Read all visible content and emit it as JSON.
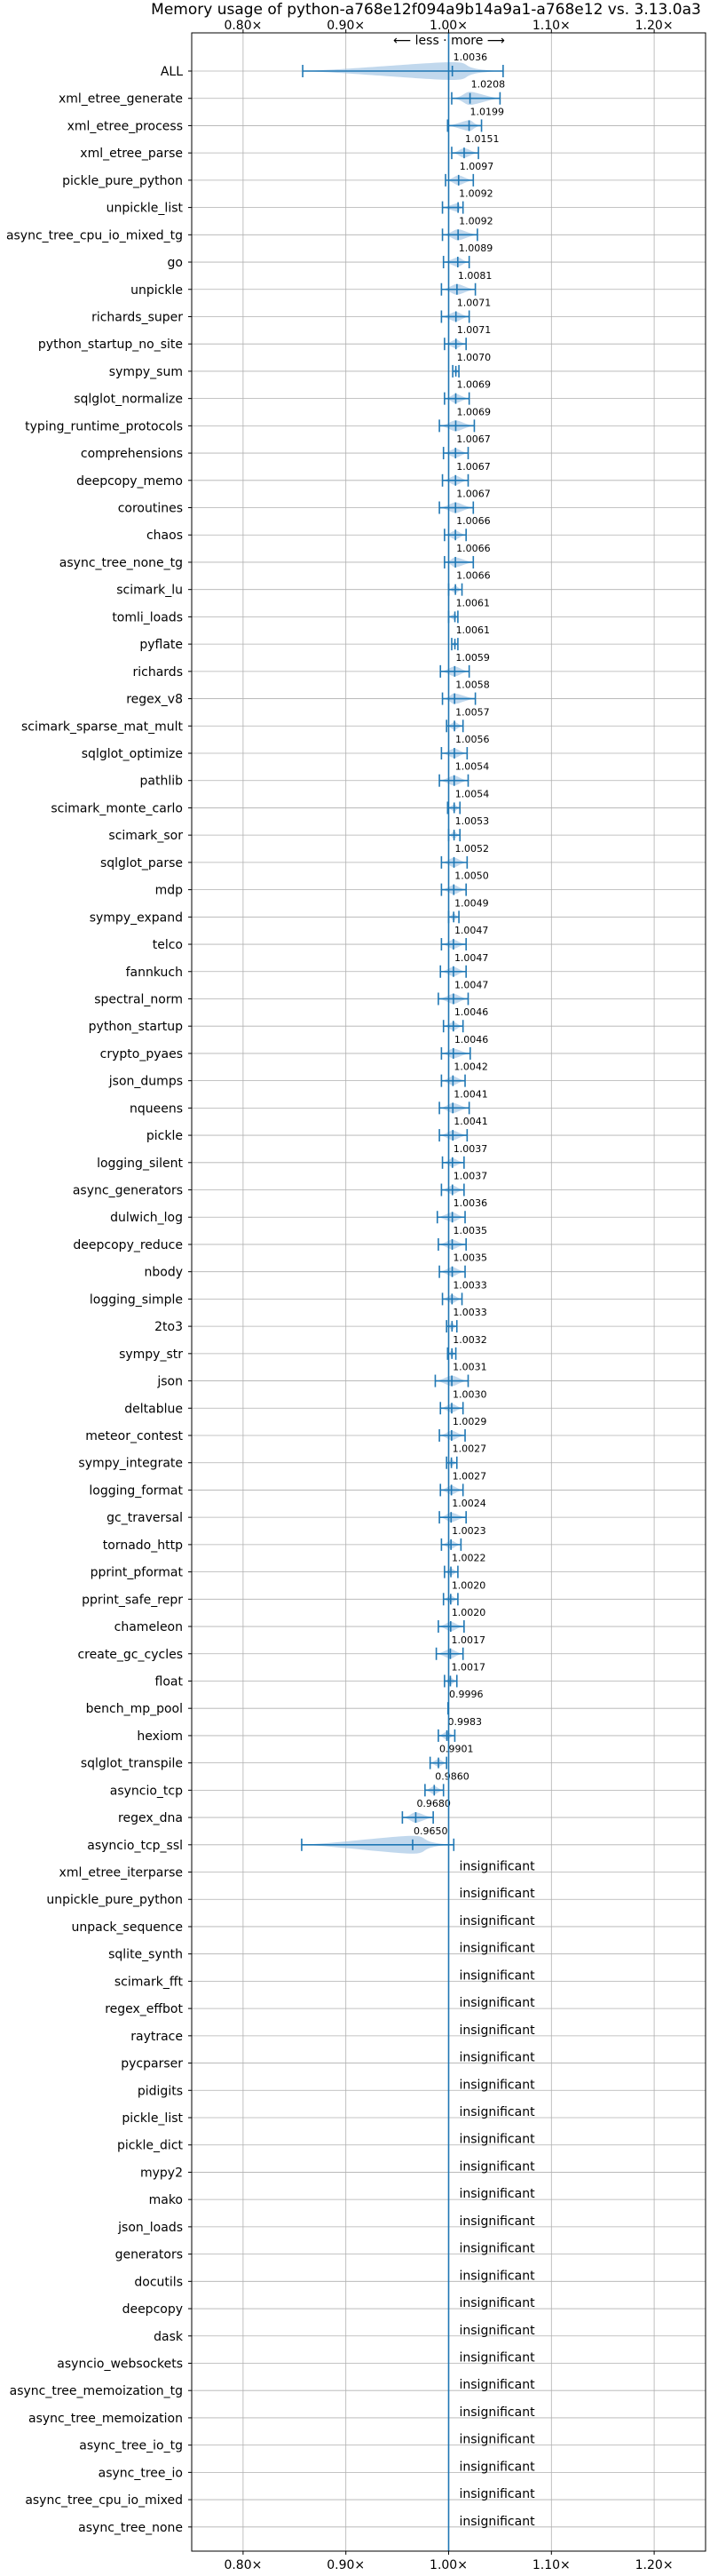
{
  "chart_data": {
    "type": "scatter",
    "title": "Memory usage of python-a768e12f094a9b14a9a1-a768e12 vs. 3.13.0a3",
    "direction_label": "⟵ less · more ⟶",
    "xlabel": "",
    "ylabel": "",
    "xlim": [
      0.75,
      1.25
    ],
    "x_ticks": [
      0.8,
      0.9,
      1.0,
      1.1,
      1.2
    ],
    "x_tick_labels": [
      "0.80×",
      "0.90×",
      "1.00×",
      "1.10×",
      "1.20×"
    ],
    "reference_line": 1.0,
    "grid": true,
    "insignificant_label": "insignificant",
    "colors": {
      "line": "#1f77b4",
      "fill": "#a6c8e6",
      "grid": "#b0b0b0"
    },
    "benchmarks": [
      {
        "name": "ALL",
        "value": 1.0036,
        "label": "1.0036",
        "lo": 0.858,
        "hi": 1.053
      },
      {
        "name": "xml_etree_generate",
        "value": 1.0208,
        "label": "1.0208",
        "lo": 1.003,
        "hi": 1.05
      },
      {
        "name": "xml_etree_process",
        "value": 1.0199,
        "label": "1.0199",
        "lo": 0.999,
        "hi": 1.032
      },
      {
        "name": "xml_etree_parse",
        "value": 1.0151,
        "label": "1.0151",
        "lo": 1.003,
        "hi": 1.029
      },
      {
        "name": "pickle_pure_python",
        "value": 1.0097,
        "label": "1.0097",
        "lo": 0.997,
        "hi": 1.024
      },
      {
        "name": "unpickle_list",
        "value": 1.0092,
        "label": "1.0092",
        "lo": 0.994,
        "hi": 1.014
      },
      {
        "name": "async_tree_cpu_io_mixed_tg",
        "value": 1.0092,
        "label": "1.0092",
        "lo": 0.994,
        "hi": 1.028
      },
      {
        "name": "go",
        "value": 1.0089,
        "label": "1.0089",
        "lo": 0.995,
        "hi": 1.02
      },
      {
        "name": "unpickle",
        "value": 1.0081,
        "label": "1.0081",
        "lo": 0.993,
        "hi": 1.026
      },
      {
        "name": "richards_super",
        "value": 1.0071,
        "label": "1.0071",
        "lo": 0.993,
        "hi": 1.02
      },
      {
        "name": "python_startup_no_site",
        "value": 1.0071,
        "label": "1.0071",
        "lo": 0.996,
        "hi": 1.017
      },
      {
        "name": "sympy_sum",
        "value": 1.007,
        "label": "1.0070",
        "lo": 1.004,
        "hi": 1.01
      },
      {
        "name": "sqlglot_normalize",
        "value": 1.0069,
        "label": "1.0069",
        "lo": 0.996,
        "hi": 1.02
      },
      {
        "name": "typing_runtime_protocols",
        "value": 1.0069,
        "label": "1.0069",
        "lo": 0.991,
        "hi": 1.025
      },
      {
        "name": "comprehensions",
        "value": 1.0067,
        "label": "1.0067",
        "lo": 0.995,
        "hi": 1.019
      },
      {
        "name": "deepcopy_memo",
        "value": 1.0067,
        "label": "1.0067",
        "lo": 0.994,
        "hi": 1.019
      },
      {
        "name": "coroutines",
        "value": 1.0067,
        "label": "1.0067",
        "lo": 0.991,
        "hi": 1.024
      },
      {
        "name": "chaos",
        "value": 1.0066,
        "label": "1.0066",
        "lo": 0.996,
        "hi": 1.017
      },
      {
        "name": "async_tree_none_tg",
        "value": 1.0066,
        "label": "1.0066",
        "lo": 0.996,
        "hi": 1.024
      },
      {
        "name": "scimark_lu",
        "value": 1.0066,
        "label": "1.0066",
        "lo": 1.0,
        "hi": 1.013
      },
      {
        "name": "tomli_loads",
        "value": 1.0061,
        "label": "1.0061",
        "lo": 1.0,
        "hi": 1.009
      },
      {
        "name": "pyflate",
        "value": 1.0061,
        "label": "1.0061",
        "lo": 1.003,
        "hi": 1.009
      },
      {
        "name": "richards",
        "value": 1.0059,
        "label": "1.0059",
        "lo": 0.992,
        "hi": 1.02
      },
      {
        "name": "regex_v8",
        "value": 1.0058,
        "label": "1.0058",
        "lo": 0.994,
        "hi": 1.026
      },
      {
        "name": "scimark_sparse_mat_mult",
        "value": 1.0057,
        "label": "1.0057",
        "lo": 0.998,
        "hi": 1.014
      },
      {
        "name": "sqlglot_optimize",
        "value": 1.0056,
        "label": "1.0056",
        "lo": 0.993,
        "hi": 1.018
      },
      {
        "name": "pathlib",
        "value": 1.0054,
        "label": "1.0054",
        "lo": 0.991,
        "hi": 1.019
      },
      {
        "name": "scimark_monte_carlo",
        "value": 1.0054,
        "label": "1.0054",
        "lo": 0.999,
        "hi": 1.011
      },
      {
        "name": "scimark_sor",
        "value": 1.0053,
        "label": "1.0053",
        "lo": 1.0,
        "hi": 1.011
      },
      {
        "name": "sqlglot_parse",
        "value": 1.0052,
        "label": "1.0052",
        "lo": 0.993,
        "hi": 1.018
      },
      {
        "name": "mdp",
        "value": 1.005,
        "label": "1.0050",
        "lo": 0.993,
        "hi": 1.017
      },
      {
        "name": "sympy_expand",
        "value": 1.0049,
        "label": "1.0049",
        "lo": 1.0,
        "hi": 1.01
      },
      {
        "name": "telco",
        "value": 1.0047,
        "label": "1.0047",
        "lo": 0.993,
        "hi": 1.017
      },
      {
        "name": "fannkuch",
        "value": 1.0047,
        "label": "1.0047",
        "lo": 0.992,
        "hi": 1.017
      },
      {
        "name": "spectral_norm",
        "value": 1.0047,
        "label": "1.0047",
        "lo": 0.99,
        "hi": 1.019
      },
      {
        "name": "python_startup",
        "value": 1.0046,
        "label": "1.0046",
        "lo": 0.995,
        "hi": 1.014
      },
      {
        "name": "crypto_pyaes",
        "value": 1.0046,
        "label": "1.0046",
        "lo": 0.993,
        "hi": 1.021
      },
      {
        "name": "json_dumps",
        "value": 1.0042,
        "label": "1.0042",
        "lo": 0.993,
        "hi": 1.016
      },
      {
        "name": "nqueens",
        "value": 1.0041,
        "label": "1.0041",
        "lo": 0.991,
        "hi": 1.02
      },
      {
        "name": "pickle",
        "value": 1.0041,
        "label": "1.0041",
        "lo": 0.991,
        "hi": 1.018
      },
      {
        "name": "logging_silent",
        "value": 1.0037,
        "label": "1.0037",
        "lo": 0.994,
        "hi": 1.015
      },
      {
        "name": "async_generators",
        "value": 1.0037,
        "label": "1.0037",
        "lo": 0.993,
        "hi": 1.015
      },
      {
        "name": "dulwich_log",
        "value": 1.0036,
        "label": "1.0036",
        "lo": 0.989,
        "hi": 1.016
      },
      {
        "name": "deepcopy_reduce",
        "value": 1.0035,
        "label": "1.0035",
        "lo": 0.99,
        "hi": 1.017
      },
      {
        "name": "nbody",
        "value": 1.0035,
        "label": "1.0035",
        "lo": 0.991,
        "hi": 1.016
      },
      {
        "name": "logging_simple",
        "value": 1.0033,
        "label": "1.0033",
        "lo": 0.994,
        "hi": 1.013
      },
      {
        "name": "2to3",
        "value": 1.0033,
        "label": "1.0033",
        "lo": 0.998,
        "hi": 1.008
      },
      {
        "name": "sympy_str",
        "value": 1.0032,
        "label": "1.0032",
        "lo": 0.999,
        "hi": 1.007
      },
      {
        "name": "json",
        "value": 1.0031,
        "label": "1.0031",
        "lo": 0.987,
        "hi": 1.019
      },
      {
        "name": "deltablue",
        "value": 1.003,
        "label": "1.0030",
        "lo": 0.992,
        "hi": 1.014
      },
      {
        "name": "meteor_contest",
        "value": 1.0029,
        "label": "1.0029",
        "lo": 0.991,
        "hi": 1.016
      },
      {
        "name": "sympy_integrate",
        "value": 1.0027,
        "label": "1.0027",
        "lo": 0.998,
        "hi": 1.008
      },
      {
        "name": "logging_format",
        "value": 1.0027,
        "label": "1.0027",
        "lo": 0.992,
        "hi": 1.014
      },
      {
        "name": "gc_traversal",
        "value": 1.0024,
        "label": "1.0024",
        "lo": 0.991,
        "hi": 1.017
      },
      {
        "name": "tornado_http",
        "value": 1.0023,
        "label": "1.0023",
        "lo": 0.993,
        "hi": 1.012
      },
      {
        "name": "pprint_pformat",
        "value": 1.0022,
        "label": "1.0022",
        "lo": 0.996,
        "hi": 1.009
      },
      {
        "name": "pprint_safe_repr",
        "value": 1.002,
        "label": "1.0020",
        "lo": 0.995,
        "hi": 1.009
      },
      {
        "name": "chameleon",
        "value": 1.002,
        "label": "1.0020",
        "lo": 0.99,
        "hi": 1.015
      },
      {
        "name": "create_gc_cycles",
        "value": 1.0017,
        "label": "1.0017",
        "lo": 0.988,
        "hi": 1.014
      },
      {
        "name": "float",
        "value": 1.0017,
        "label": "1.0017",
        "lo": 0.996,
        "hi": 1.008
      },
      {
        "name": "bench_mp_pool",
        "value": 0.9996,
        "label": "0.9996",
        "lo": 0.9994,
        "hi": 0.9998
      },
      {
        "name": "hexiom",
        "value": 0.9983,
        "label": "0.9983",
        "lo": 0.99,
        "hi": 1.006
      },
      {
        "name": "sqlglot_transpile",
        "value": 0.9901,
        "label": "0.9901",
        "lo": 0.982,
        "hi": 0.998
      },
      {
        "name": "asyncio_tcp",
        "value": 0.986,
        "label": "0.9860",
        "lo": 0.977,
        "hi": 0.995
      },
      {
        "name": "regex_dna",
        "value": 0.968,
        "label": "0.9680",
        "lo": 0.955,
        "hi": 0.985
      },
      {
        "name": "asyncio_tcp_ssl",
        "value": 0.965,
        "label": "0.9650",
        "lo": 0.857,
        "hi": 1.005
      },
      {
        "name": "xml_etree_iterparse",
        "insignificant": true
      },
      {
        "name": "unpickle_pure_python",
        "insignificant": true
      },
      {
        "name": "unpack_sequence",
        "insignificant": true
      },
      {
        "name": "sqlite_synth",
        "insignificant": true
      },
      {
        "name": "scimark_fft",
        "insignificant": true
      },
      {
        "name": "regex_effbot",
        "insignificant": true
      },
      {
        "name": "raytrace",
        "insignificant": true
      },
      {
        "name": "pycparser",
        "insignificant": true
      },
      {
        "name": "pidigits",
        "insignificant": true
      },
      {
        "name": "pickle_list",
        "insignificant": true
      },
      {
        "name": "pickle_dict",
        "insignificant": true
      },
      {
        "name": "mypy2",
        "insignificant": true
      },
      {
        "name": "mako",
        "insignificant": true
      },
      {
        "name": "json_loads",
        "insignificant": true
      },
      {
        "name": "generators",
        "insignificant": true
      },
      {
        "name": "docutils",
        "insignificant": true
      },
      {
        "name": "deepcopy",
        "insignificant": true
      },
      {
        "name": "dask",
        "insignificant": true
      },
      {
        "name": "asyncio_websockets",
        "insignificant": true
      },
      {
        "name": "async_tree_memoization_tg",
        "insignificant": true
      },
      {
        "name": "async_tree_memoization",
        "insignificant": true
      },
      {
        "name": "async_tree_io_tg",
        "insignificant": true
      },
      {
        "name": "async_tree_io",
        "insignificant": true
      },
      {
        "name": "async_tree_cpu_io_mixed",
        "insignificant": true
      },
      {
        "name": "async_tree_none",
        "insignificant": true
      }
    ]
  }
}
